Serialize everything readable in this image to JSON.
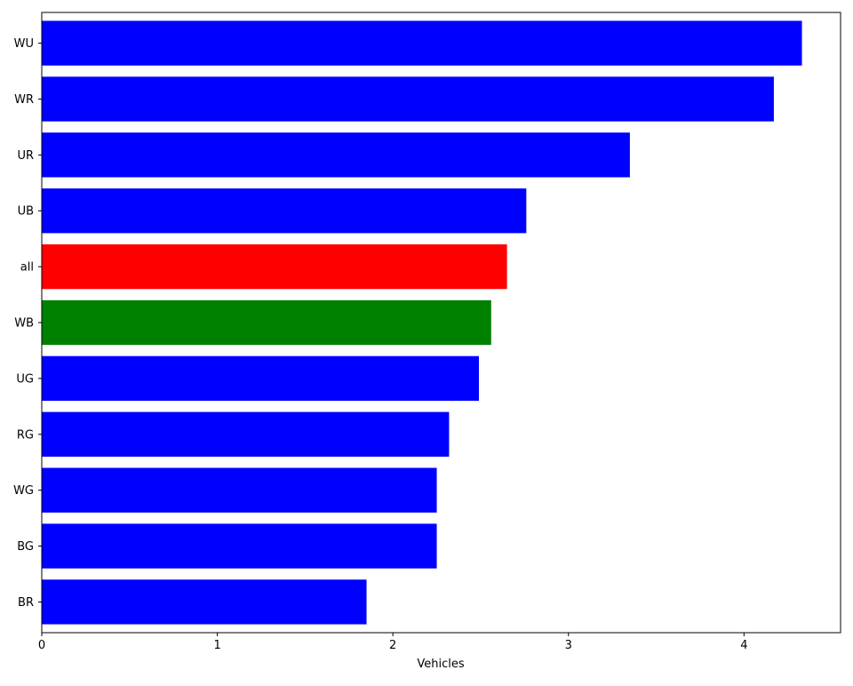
{
  "chart_data": {
    "type": "bar",
    "orientation": "horizontal",
    "title": "",
    "xlabel": "Vehicles",
    "ylabel": "",
    "xlim": [
      0,
      4.55
    ],
    "xticks": [
      0,
      1,
      2,
      3,
      4
    ],
    "grid": false,
    "legend": "none",
    "categories": [
      "WU",
      "WR",
      "UR",
      "UB",
      "all",
      "WB",
      "UG",
      "RG",
      "WG",
      "BG",
      "BR"
    ],
    "values": [
      4.33,
      4.17,
      3.35,
      2.76,
      2.65,
      2.56,
      2.49,
      2.32,
      2.25,
      2.25,
      1.85
    ],
    "colors": [
      "#0000ff",
      "#0000ff",
      "#0000ff",
      "#0000ff",
      "#ff0000",
      "#008000",
      "#0000ff",
      "#0000ff",
      "#0000ff",
      "#0000ff",
      "#0000ff"
    ]
  }
}
